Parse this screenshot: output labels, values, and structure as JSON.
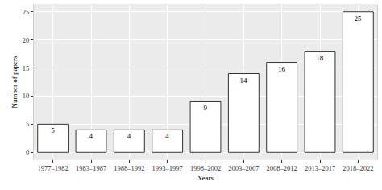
{
  "chart_data": {
    "type": "bar",
    "x_label": "Years",
    "y_label": "Number of papers",
    "categories": [
      "1977–1982",
      "1983–1987",
      "1988–1992",
      "1993–1997",
      "1998–2002",
      "2003–2007",
      "2008–2012",
      "2013–2017",
      "2018–2022"
    ],
    "values": [
      5,
      4,
      4,
      4,
      9,
      14,
      16,
      18,
      25
    ],
    "color": "#ffffff",
    "ylim": [
      -1.25,
      26.25
    ],
    "yticks": [
      0,
      5,
      10,
      15,
      20,
      25
    ],
    "grid": true,
    "data_labels": true
  }
}
